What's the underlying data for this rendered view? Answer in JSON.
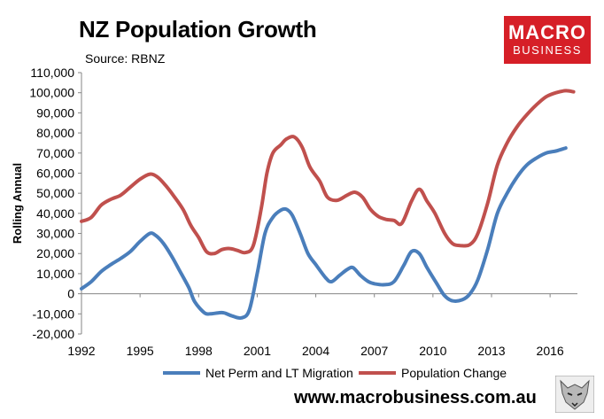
{
  "header": {
    "title": "NZ Population Growth",
    "source": "Source: RBNZ"
  },
  "logo": {
    "line1": "MACRO",
    "line2": "BUSINESS",
    "color": "#d61f27"
  },
  "footer": {
    "url": "www.macrobusiness.com.au"
  },
  "chart_data": {
    "type": "line",
    "title": "NZ Population Growth",
    "ylabel": "Rolling Annual",
    "xlabel": "",
    "ylim": [
      -20000,
      110000
    ],
    "xlim": [
      1992,
      2017.4
    ],
    "grid": false,
    "legend_position": "bottom",
    "x_ticks": [
      "1992",
      "1995",
      "1998",
      "2001",
      "2004",
      "2007",
      "2010",
      "2013",
      "2016"
    ],
    "y_ticks": [
      "-20,000",
      "-10,000",
      "0",
      "10,000",
      "20,000",
      "30,000",
      "40,000",
      "50,000",
      "60,000",
      "70,000",
      "80,000",
      "90,000",
      "100,000",
      "110,000"
    ],
    "series": [
      {
        "name": "Net Perm and LT Migration",
        "color": "#4a7ebb",
        "points": [
          [
            1992.0,
            2500
          ],
          [
            1992.5,
            6000
          ],
          [
            1993.0,
            11000
          ],
          [
            1993.5,
            14500
          ],
          [
            1994.0,
            17500
          ],
          [
            1994.5,
            21000
          ],
          [
            1995.0,
            26000
          ],
          [
            1995.5,
            30000
          ],
          [
            1995.8,
            29000
          ],
          [
            1996.2,
            25000
          ],
          [
            1996.6,
            19000
          ],
          [
            1997.0,
            12000
          ],
          [
            1997.5,
            3000
          ],
          [
            1997.8,
            -4000
          ],
          [
            1998.3,
            -9500
          ],
          [
            1998.6,
            -10000
          ],
          [
            1999.0,
            -9500
          ],
          [
            1999.3,
            -9500
          ],
          [
            1999.7,
            -11000
          ],
          [
            2000.2,
            -12000
          ],
          [
            2000.6,
            -8000
          ],
          [
            2001.0,
            10000
          ],
          [
            2001.4,
            30000
          ],
          [
            2001.8,
            38000
          ],
          [
            2002.2,
            41500
          ],
          [
            2002.5,
            42000
          ],
          [
            2002.8,
            39000
          ],
          [
            2003.2,
            30000
          ],
          [
            2003.6,
            20000
          ],
          [
            2004.0,
            14500
          ],
          [
            2004.5,
            8000
          ],
          [
            2004.8,
            6000
          ],
          [
            2005.2,
            9000
          ],
          [
            2005.6,
            12000
          ],
          [
            2005.9,
            13000
          ],
          [
            2006.3,
            9000
          ],
          [
            2006.7,
            6000
          ],
          [
            2007.0,
            5000
          ],
          [
            2007.5,
            4500
          ],
          [
            2008.0,
            6000
          ],
          [
            2008.5,
            14000
          ],
          [
            2008.9,
            21000
          ],
          [
            2009.3,
            20000
          ],
          [
            2009.7,
            13000
          ],
          [
            2010.2,
            5000
          ],
          [
            2010.6,
            -1000
          ],
          [
            2011.0,
            -3500
          ],
          [
            2011.5,
            -3000
          ],
          [
            2011.9,
            0
          ],
          [
            2012.3,
            7000
          ],
          [
            2012.8,
            22000
          ],
          [
            2013.3,
            40000
          ],
          [
            2013.8,
            50000
          ],
          [
            2014.3,
            58000
          ],
          [
            2014.8,
            64000
          ],
          [
            2015.3,
            67500
          ],
          [
            2015.8,
            70000
          ],
          [
            2016.3,
            71000
          ],
          [
            2016.8,
            72500
          ]
        ]
      },
      {
        "name": "Population Change",
        "color": "#c0504d",
        "points": [
          [
            1992.0,
            36000
          ],
          [
            1992.5,
            38000
          ],
          [
            1993.0,
            44000
          ],
          [
            1993.5,
            47000
          ],
          [
            1994.0,
            49000
          ],
          [
            1994.5,
            53000
          ],
          [
            1995.0,
            57000
          ],
          [
            1995.5,
            59500
          ],
          [
            1995.9,
            58000
          ],
          [
            1996.3,
            54000
          ],
          [
            1996.7,
            49000
          ],
          [
            1997.2,
            42000
          ],
          [
            1997.6,
            34000
          ],
          [
            1998.0,
            28000
          ],
          [
            1998.4,
            21000
          ],
          [
            1998.8,
            20000
          ],
          [
            1999.2,
            22000
          ],
          [
            1999.6,
            22500
          ],
          [
            2000.0,
            21500
          ],
          [
            2000.4,
            20500
          ],
          [
            2000.8,
            24000
          ],
          [
            2001.2,
            42000
          ],
          [
            2001.5,
            60000
          ],
          [
            2001.8,
            70000
          ],
          [
            2002.2,
            74000
          ],
          [
            2002.5,
            77000
          ],
          [
            2002.9,
            78000
          ],
          [
            2003.3,
            73000
          ],
          [
            2003.7,
            63000
          ],
          [
            2004.2,
            56000
          ],
          [
            2004.6,
            48000
          ],
          [
            2005.1,
            46500
          ],
          [
            2005.6,
            49000
          ],
          [
            2006.0,
            50500
          ],
          [
            2006.4,
            48000
          ],
          [
            2006.8,
            42000
          ],
          [
            2007.2,
            38500
          ],
          [
            2007.6,
            37000
          ],
          [
            2008.0,
            36500
          ],
          [
            2008.4,
            35000
          ],
          [
            2008.9,
            46000
          ],
          [
            2009.3,
            52000
          ],
          [
            2009.7,
            46000
          ],
          [
            2010.1,
            40000
          ],
          [
            2010.6,
            30000
          ],
          [
            2011.0,
            25000
          ],
          [
            2011.4,
            24000
          ],
          [
            2011.9,
            24500
          ],
          [
            2012.3,
            30000
          ],
          [
            2012.8,
            45000
          ],
          [
            2013.3,
            64000
          ],
          [
            2013.8,
            75000
          ],
          [
            2014.3,
            83000
          ],
          [
            2014.8,
            89000
          ],
          [
            2015.3,
            94000
          ],
          [
            2015.8,
            98000
          ],
          [
            2016.3,
            100000
          ],
          [
            2016.8,
            101000
          ],
          [
            2017.2,
            100500
          ]
        ]
      }
    ]
  }
}
